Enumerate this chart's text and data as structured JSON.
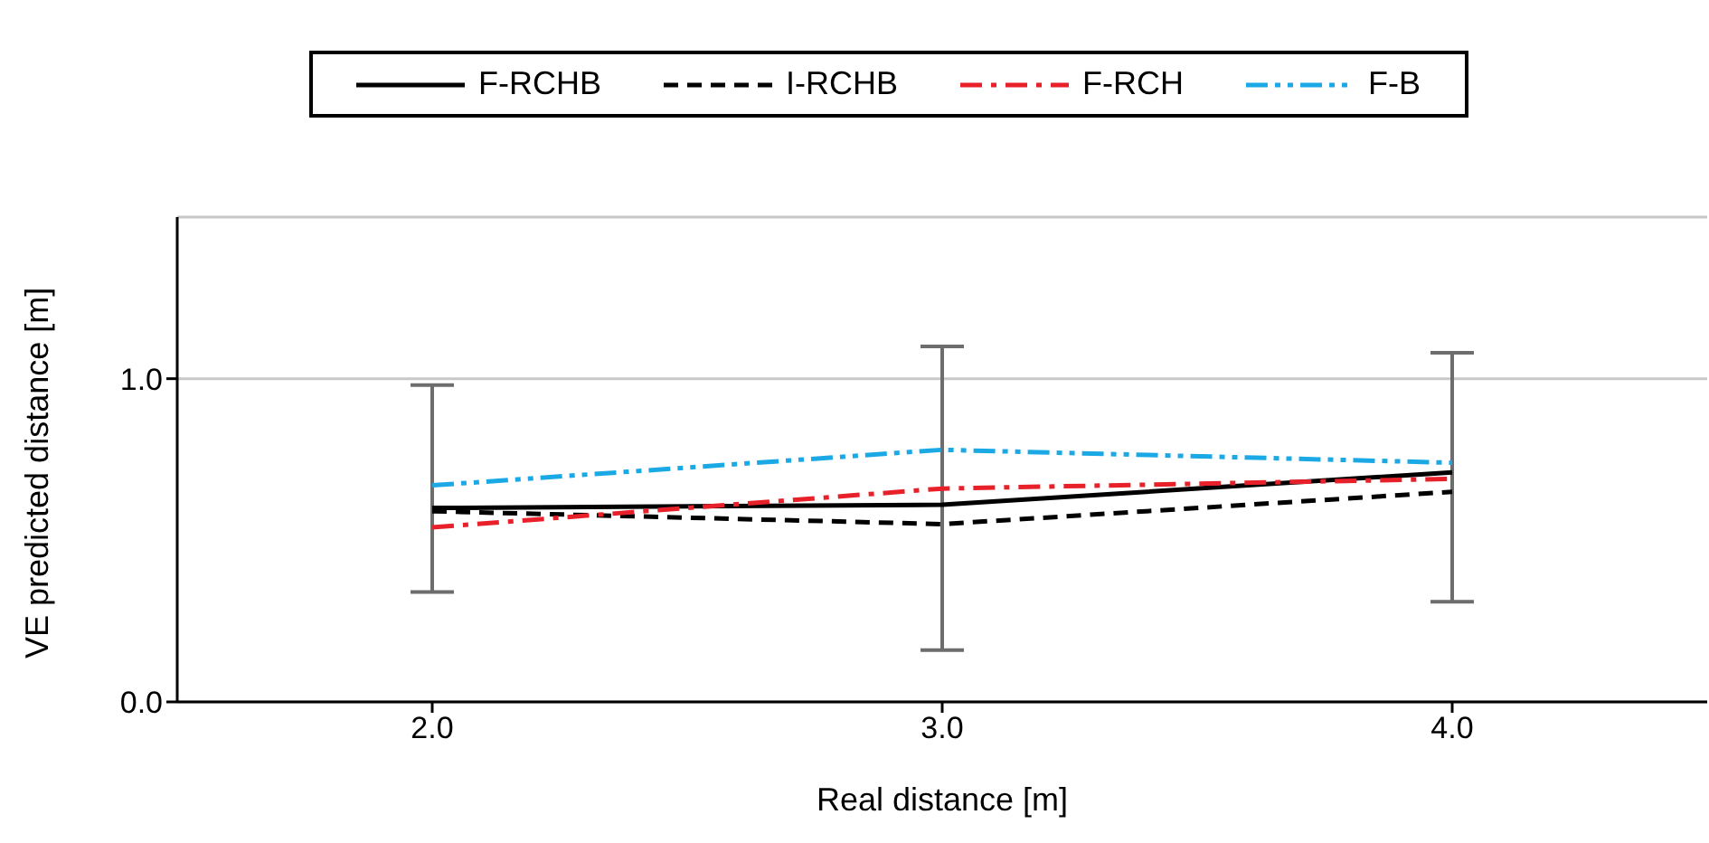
{
  "chart_data": {
    "type": "line",
    "xlabel": "Real distance [m]",
    "ylabel": "VE predicted distance [m]",
    "x": [
      2,
      3,
      4
    ],
    "series": [
      {
        "name": "F-RCHB",
        "color": "#000000",
        "line_style": "solid",
        "values": [
          0.6,
          0.61,
          0.71
        ],
        "errors": [
          [
            0.34,
            0.98
          ],
          [
            0.16,
            1.1
          ],
          [
            0.31,
            1.08
          ]
        ]
      },
      {
        "name": "I-RCHB",
        "color": "#000000",
        "line_style": "dashed",
        "values": [
          0.59,
          0.55,
          0.65
        ]
      },
      {
        "name": "F-RCH",
        "color": "#e8202a",
        "line_style": "dashdot",
        "values": [
          0.54,
          0.66,
          0.69
        ]
      },
      {
        "name": "F-B",
        "color": "#1ba9e6",
        "line_style": "dashdotdot",
        "values": [
          0.67,
          0.78,
          0.74
        ]
      }
    ],
    "xlim": [
      1.5,
      4.5
    ],
    "xticks": [
      {
        "value": 2,
        "label": "2.0"
      },
      {
        "value": 3,
        "label": "3.0"
      },
      {
        "value": 4,
        "label": "4.0"
      }
    ],
    "ylim": [
      0,
      1.5
    ],
    "yticks": [
      {
        "value": 0,
        "label": "0.0"
      },
      {
        "value": 1,
        "label": "1.0"
      }
    ],
    "grid": "y",
    "legend": "top",
    "marker": "none"
  }
}
